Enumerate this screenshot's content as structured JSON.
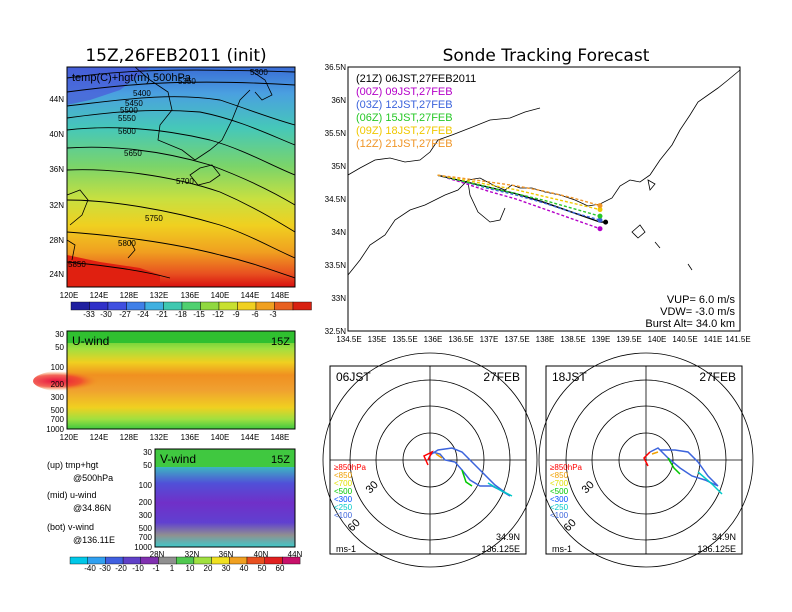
{
  "left_title": "15Z,26FEB2011 (init)",
  "right_title": "Sonde Tracking Forecast",
  "map_panel": {
    "label": "temp(C)+hgt(m) 500hPa",
    "lon_ticks": [
      "120E",
      "124E",
      "128E",
      "132E",
      "136E",
      "140E",
      "144E",
      "148E"
    ],
    "lat_ticks": [
      "24N",
      "28N",
      "32N",
      "36N",
      "40N",
      "44N"
    ],
    "contour_labels": [
      "5300",
      "5350",
      "5400",
      "5450",
      "5500",
      "5550",
      "5600",
      "5650",
      "5700",
      "5750",
      "5800",
      "5850"
    ],
    "colorbar_ticks": [
      "-33",
      "-30",
      "-27",
      "-24",
      "-21",
      "-18",
      "-15",
      "-12",
      "-9",
      "-6",
      "-3"
    ]
  },
  "u_panel": {
    "label": "U-wind",
    "time": "15Z",
    "p_ticks": [
      "30",
      "50",
      "100",
      "200",
      "300",
      "500",
      "700",
      "1000"
    ],
    "lon_ticks": [
      "120E",
      "124E",
      "128E",
      "132E",
      "136E",
      "140E",
      "144E",
      "148E"
    ]
  },
  "v_panel": {
    "label": "V-wind",
    "time": "15Z",
    "p_ticks": [
      "30",
      "50",
      "100",
      "200",
      "300",
      "500",
      "700",
      "1000"
    ],
    "lat_ticks": [
      "28N",
      "32N",
      "36N",
      "40N",
      "44N"
    ]
  },
  "captions": {
    "up_1": "(up) tmp+hgt",
    "up_2": "@500hPa",
    "mid_1": "(mid) u-wind",
    "mid_2": "@34.86N",
    "bot_1": "(bot) v-wind",
    "bot_2": "@136.11E"
  },
  "wind_colorbar_ticks": [
    "-40",
    "-30",
    "-20",
    "-10",
    "-1",
    "1",
    "10",
    "20",
    "30",
    "40",
    "50",
    "60"
  ],
  "track_panel": {
    "lat_ticks": [
      "32.5N",
      "33N",
      "33.5N",
      "34N",
      "34.5N",
      "35N",
      "35.5N",
      "36N",
      "36.5N"
    ],
    "lon_ticks": [
      "134.5E",
      "135E",
      "135.5E",
      "136E",
      "136.5E",
      "137E",
      "137.5E",
      "138E",
      "138.5E",
      "139E",
      "139.5E",
      "140E",
      "140.5E",
      "141E",
      "141.5E"
    ],
    "legend": [
      {
        "text": "(21Z)  06JST,27FEB2011",
        "color": "#000000"
      },
      {
        "text": "(00Z)  09JST,27FEB",
        "color": "#b400c8"
      },
      {
        "text": "(03Z)  12JST,27FEB",
        "color": "#3c64dc"
      },
      {
        "text": "(06Z)  15JST,27FEB",
        "color": "#28c828"
      },
      {
        "text": "(09Z)  18JST,27FEB",
        "color": "#f0c800"
      },
      {
        "text": "(12Z)  21JST,27FEB",
        "color": "#f09628"
      }
    ],
    "params": [
      "VUP=  6.0  m/s",
      "VDW=  -3.0  m/s",
      "Burst Alt=  34.0  km"
    ]
  },
  "hodo_left": {
    "time_label": "06JST",
    "date_label": "27FEB",
    "unit": "ms-1",
    "lat": "34.9N",
    "lon": "136.125E",
    "ring_labels": [
      "30",
      "60"
    ],
    "levels": [
      {
        "text": "≥850hPa",
        "color": "#ff0000"
      },
      {
        "text": "<850",
        "color": "#f0a000"
      },
      {
        "text": "<700",
        "color": "#e0e000"
      },
      {
        "text": "<500",
        "color": "#00c800"
      },
      {
        "text": "<300",
        "color": "#0050ff"
      },
      {
        "text": "<250",
        "color": "#00c8c8"
      },
      {
        "text": "<100",
        "color": "#3c64dc"
      }
    ]
  },
  "hodo_right": {
    "time_label": "18JST",
    "date_label": "27FEB",
    "unit": "ms-1",
    "lat": "34.9N",
    "lon": "136.125E",
    "ring_labels": [
      "30",
      "60"
    ],
    "levels": [
      {
        "text": "≥850hPa",
        "color": "#ff0000"
      },
      {
        "text": "<850",
        "color": "#f0a000"
      },
      {
        "text": "<700",
        "color": "#e0e000"
      },
      {
        "text": "<500",
        "color": "#00c800"
      },
      {
        "text": "<300",
        "color": "#0050ff"
      },
      {
        "text": "<250",
        "color": "#00c8c8"
      },
      {
        "text": "<100",
        "color": "#3c64dc"
      }
    ]
  },
  "chart_data": [
    {
      "type": "heatmap",
      "title": "15Z,26FEB2011 (init)",
      "label": "temp(C)+hgt(m) 500hPa",
      "xlim": [
        120,
        150
      ],
      "ylim": [
        22,
        47
      ],
      "colorbar": [
        -33,
        -30,
        -27,
        -24,
        -21,
        -18,
        -15,
        -12,
        -9,
        -6,
        -3
      ],
      "contours_m": [
        5300,
        5350,
        5400,
        5450,
        5500,
        5550,
        5600,
        5650,
        5700,
        5750,
        5800,
        5850
      ]
    },
    {
      "type": "heatmap",
      "label": "U-wind",
      "xlim": [
        120,
        150
      ],
      "pressure_levels": [
        30,
        50,
        100,
        200,
        300,
        500,
        700,
        1000
      ]
    },
    {
      "type": "heatmap",
      "label": "V-wind",
      "xlim": [
        28,
        44
      ],
      "pressure_levels": [
        30,
        50,
        100,
        200,
        300,
        500,
        700,
        1000
      ]
    },
    {
      "type": "line",
      "title": "Sonde Tracking Forecast",
      "xlim": [
        134.5,
        141.5
      ],
      "ylim": [
        32.5,
        36.5
      ],
      "series": [
        {
          "name": "(21Z)  06JST,27FEB2011",
          "x": [
            136.1,
            136.5,
            137.0,
            137.5,
            138.0,
            138.5,
            139.0,
            139.1
          ],
          "y": [
            34.86,
            34.78,
            34.68,
            34.58,
            34.45,
            34.3,
            34.15,
            34.15
          ]
        },
        {
          "name": "(00Z)  09JST,27FEB",
          "x": [
            136.1,
            136.5,
            137.0,
            137.5,
            138.0,
            138.5,
            139.0
          ],
          "y": [
            34.86,
            34.76,
            34.62,
            34.5,
            34.35,
            34.2,
            34.05
          ]
        },
        {
          "name": "(03Z)  12JST,27FEB",
          "x": [
            136.1,
            136.5,
            137.0,
            137.5,
            138.0,
            138.5,
            139.0
          ],
          "y": [
            34.86,
            34.78,
            34.66,
            34.56,
            34.44,
            34.3,
            34.18
          ]
        },
        {
          "name": "(06Z)  15JST,27FEB",
          "x": [
            136.1,
            136.5,
            137.0,
            137.5,
            138.0,
            138.5,
            139.0
          ],
          "y": [
            34.86,
            34.78,
            34.68,
            34.58,
            34.48,
            34.36,
            34.24
          ]
        },
        {
          "name": "(09Z)  18JST,27FEB",
          "x": [
            136.1,
            136.5,
            137.0,
            137.5,
            138.0,
            138.5,
            139.0
          ],
          "y": [
            34.86,
            34.8,
            34.72,
            34.64,
            34.54,
            34.44,
            34.34
          ]
        },
        {
          "name": "(12Z)  21JST,27FEB",
          "x": [
            136.1,
            136.5,
            137.0,
            137.5,
            138.0,
            138.5,
            139.0
          ],
          "y": [
            34.86,
            34.82,
            34.76,
            34.7,
            34.62,
            34.52,
            34.4
          ]
        }
      ]
    }
  ]
}
